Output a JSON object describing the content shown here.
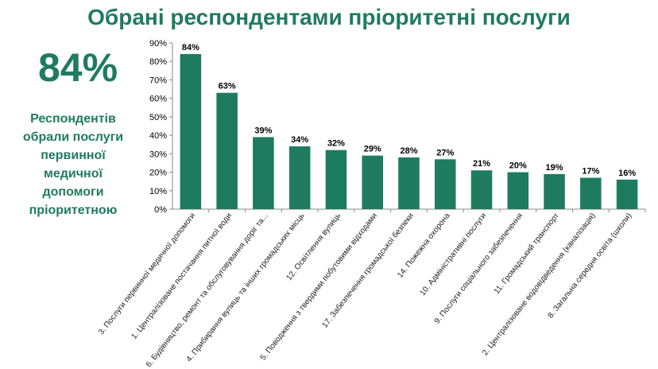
{
  "title": "Обрані респондентами пріоритетні послуги",
  "highlight": {
    "value": "84%",
    "description": "Респондентів обрали послуги первинної медичної допомоги пріоритетною"
  },
  "colors": {
    "bar": "#1f7b5f",
    "title": "#1f7b5f",
    "axis": "#888888"
  },
  "chart_data": {
    "type": "bar",
    "categories": [
      "3. Послуги первинної медичної допомоги",
      "1. Централізоване постачання питної води",
      "6. Будівництво, ремонт та обслуговування доріг та...",
      "4. Прибирання вулиць та інших громадських місць",
      "12. Освітлення вулиць",
      "5. Поводження з твердими побутовими відходами",
      "17. Забезпечення громадської безпеки",
      "14. Пожежна охорона",
      "10. Адміністративні послуги",
      "9. Послуги соціального забезпечення",
      "11. Громадський транспорт",
      "2. Централізоване водовідведення (каналізація)",
      "8. Загальна середня освіта (школи)"
    ],
    "values": [
      84,
      63,
      39,
      34,
      32,
      29,
      28,
      27,
      21,
      20,
      19,
      17,
      16
    ],
    "data_labels": [
      "84%",
      "63%",
      "39%",
      "34%",
      "32%",
      "29%",
      "28%",
      "27%",
      "21%",
      "20%",
      "19%",
      "17%",
      "16%"
    ],
    "ylim": [
      0,
      90
    ],
    "y_ticks": [
      "0%",
      "10%",
      "20%",
      "30%",
      "40%",
      "50%",
      "60%",
      "70%",
      "80%",
      "90%"
    ],
    "grid": false,
    "legend": "none"
  }
}
